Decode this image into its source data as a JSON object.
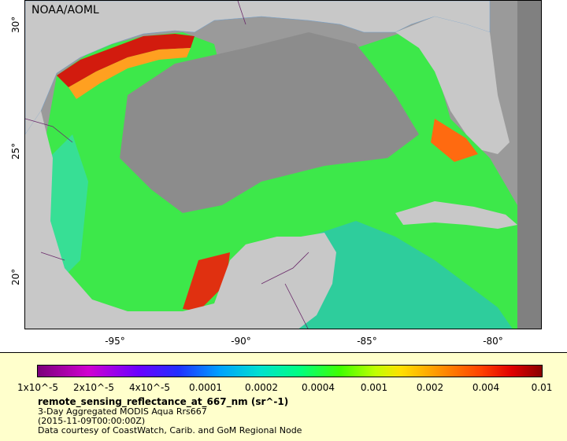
{
  "credit": "NOAA/AOML",
  "axes": {
    "y_ticks": [
      "30°",
      "25°",
      "20°"
    ],
    "x_ticks": [
      "-95°",
      "-90°",
      "-85°",
      "-80°"
    ]
  },
  "legend": {
    "colorbar_ticks": [
      "1x10^-5",
      "2x10^-5",
      "4x10^-5",
      "0.0001",
      "0.0002",
      "0.0004",
      "0.001",
      "0.002",
      "0.004",
      "0.01"
    ],
    "title": "remote_sensing_reflectance_at_667_nm (sr^-1)",
    "line2": "3-Day Aggregated MODIS Aqua Rrs667",
    "line3": "(2015-11-09T00:00:00Z)",
    "line4": "Data courtesy of CoastWatch, Carib. and GoM Regional Node"
  },
  "colors": {
    "land": "#c8c8c8",
    "no_data": "#9a9a9a",
    "legend_bg": "#ffffcc"
  }
}
